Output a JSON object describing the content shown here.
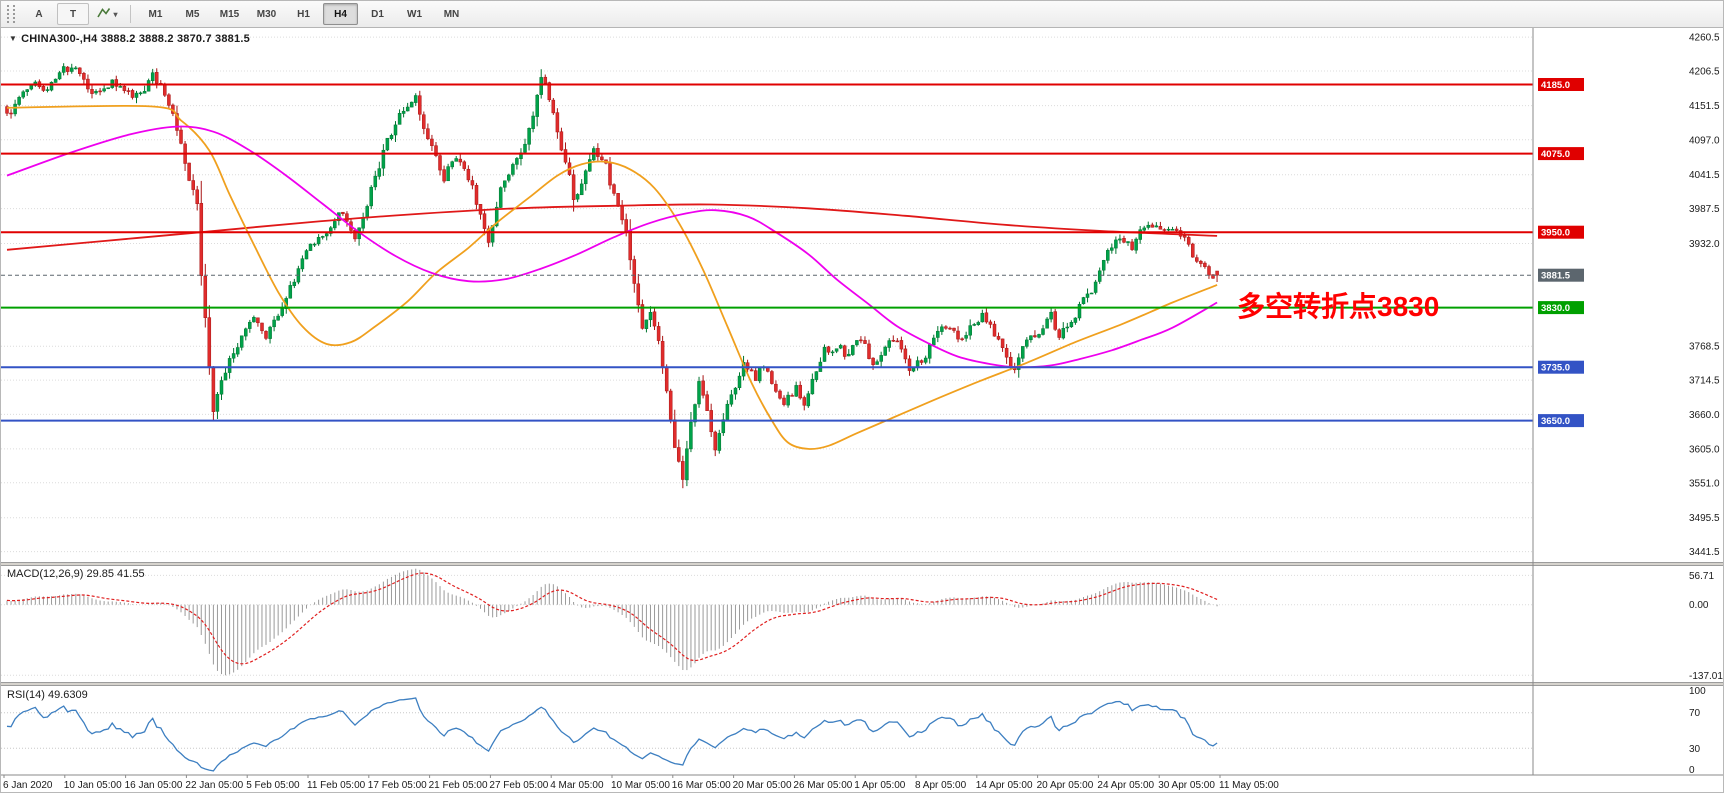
{
  "toolbar": {
    "tool_a": "A",
    "tool_t": "T",
    "timeframes": [
      "M1",
      "M5",
      "M15",
      "M30",
      "H1",
      "H4",
      "D1",
      "W1",
      "MN"
    ],
    "active_timeframe": "H4"
  },
  "chart": {
    "title": "CHINA300-,H4 3888.2 3888.2 3870.7 3881.5",
    "symbol": "CHINA300-",
    "period": "H4",
    "open": "3888.2",
    "high": "3888.2",
    "low": "3870.7",
    "close": "3881.5",
    "annotation": {
      "text": "多空转折点3830",
      "color": "#ff0000"
    }
  },
  "macd": {
    "title": "MACD(12,26,9) 29.85 41.55",
    "values": [
      "29.85",
      "41.55"
    ],
    "axis_labels": [
      {
        "text": "56.71",
        "value": 56.71
      },
      {
        "text": "0.00",
        "value": 0
      },
      {
        "text": "-137.01",
        "value": -137.01
      }
    ]
  },
  "rsi": {
    "title": "RSI(14) 49.6309",
    "value": "49.6309",
    "levels": [
      {
        "text": "100",
        "value": 100
      },
      {
        "text": "70",
        "value": 70
      },
      {
        "text": "30",
        "value": 30
      },
      {
        "text": "0",
        "value": 0
      }
    ]
  },
  "colors": {
    "bull": "#00a24a",
    "bull_border": "#00742f",
    "bear": "#e02c2c",
    "bear_border": "#a81414",
    "ma_red": "#e01818",
    "ma_orange": "#f0a01e",
    "ma_magenta": "#ee00ee",
    "grid": "#dcdcdc",
    "axis_text": "#1a1a1a",
    "border": "#8a8a8a",
    "hline_red": "#e00000",
    "hline_green": "#00a000",
    "hline_blue": "#3353c5",
    "current_badge": "#5c666e",
    "macd_hist": "#9a9a9a",
    "macd_signal": "#e02020",
    "rsi_line": "#3d7fc1"
  },
  "chart_data": {
    "type": "candlestick",
    "symbol": "CHINA300-",
    "timeframe": "H4",
    "title": "CHINA300-,H4",
    "last_bar": {
      "open": 3888.2,
      "high": 3888.2,
      "low": 3870.7,
      "close": 3881.5
    },
    "ylim": [
      3425,
      4275
    ],
    "bars_visible": 300,
    "price_axis_labels": [
      {
        "text": "4260.5",
        "value": 4260.5
      },
      {
        "text": "4206.5",
        "value": 4206.5
      },
      {
        "text": "4151.5",
        "value": 4151.5
      },
      {
        "text": "4097.0",
        "value": 4097.0
      },
      {
        "text": "4041.5",
        "value": 4041.5
      },
      {
        "text": "3987.5",
        "value": 3987.5
      },
      {
        "text": "3932.0",
        "value": 3932.0
      },
      {
        "text": "3768.5",
        "value": 3768.5
      },
      {
        "text": "3714.5",
        "value": 3714.5
      },
      {
        "text": "3660.0",
        "value": 3660.0
      },
      {
        "text": "3605.0",
        "value": 3605.0
      },
      {
        "text": "3551.0",
        "value": 3551.0
      },
      {
        "text": "3495.5",
        "value": 3495.5
      },
      {
        "text": "3441.5",
        "value": 3441.5
      }
    ],
    "time_labels": [
      "6 Jan 2020",
      "10 Jan 05:00",
      "16 Jan 05:00",
      "22 Jan 05:00",
      "5 Feb 05:00",
      "11 Feb 05:00",
      "17 Feb 05:00",
      "21 Feb 05:00",
      "27 Feb 05:00",
      "4 Mar 05:00",
      "10 Mar 05:00",
      "16 Mar 05:00",
      "20 Mar 05:00",
      "26 Mar 05:00",
      "1 Apr 05:00",
      "8 Apr 05:00",
      "14 Apr 05:00",
      "20 Apr 05:00",
      "24 Apr 05:00",
      "30 Apr 05:00",
      "11 May 05:00"
    ],
    "hlines": [
      {
        "value": 4185.0,
        "label": "4185.0",
        "color": "#e00000",
        "kind": "resistance"
      },
      {
        "value": 4075.0,
        "label": "4075.0",
        "color": "#e00000",
        "kind": "resistance"
      },
      {
        "value": 3950.0,
        "label": "3950.0",
        "color": "#e00000",
        "kind": "resistance"
      },
      {
        "value": 3881.5,
        "label": "3881.5",
        "color": "#5c666e",
        "kind": "current-price"
      },
      {
        "value": 3830.0,
        "label": "3830.0",
        "color": "#00a000",
        "kind": "pivot"
      },
      {
        "value": 3735.0,
        "label": "3735.0",
        "color": "#3353c5",
        "kind": "support"
      },
      {
        "value": 3650.0,
        "label": "3650.0",
        "color": "#3353c5",
        "kind": "support"
      }
    ],
    "price_path": [
      [
        -60,
        4080
      ],
      [
        -30,
        4118
      ],
      [
        0,
        4145
      ],
      [
        17,
        4215
      ],
      [
        21,
        4175
      ],
      [
        26,
        4190
      ],
      [
        31,
        4160
      ],
      [
        36,
        4198
      ],
      [
        41,
        4150
      ],
      [
        44,
        4070
      ],
      [
        47,
        3988
      ],
      [
        48,
        3880
      ],
      [
        50,
        3740
      ],
      [
        51,
        3672
      ],
      [
        53,
        3726
      ],
      [
        57,
        3775
      ],
      [
        61,
        3805
      ],
      [
        64,
        3782
      ],
      [
        69,
        3845
      ],
      [
        73,
        3900
      ],
      [
        78,
        3942
      ],
      [
        82,
        3982
      ],
      [
        86,
        3948
      ],
      [
        89,
        4002
      ],
      [
        93,
        4080
      ],
      [
        98,
        4145
      ],
      [
        101,
        4168
      ],
      [
        104,
        4098
      ],
      [
        108,
        4042
      ],
      [
        111,
        4078
      ],
      [
        115,
        4018
      ],
      [
        119,
        3938
      ],
      [
        122,
        4012
      ],
      [
        126,
        4068
      ],
      [
        130,
        4138
      ],
      [
        132,
        4196
      ],
      [
        135,
        4148
      ],
      [
        139,
        4038
      ],
      [
        140,
        3992
      ],
      [
        143,
        4058
      ],
      [
        145,
        4082
      ],
      [
        148,
        4052
      ],
      [
        150,
        4008
      ],
      [
        153,
        3948
      ],
      [
        155,
        3862
      ],
      [
        157,
        3782
      ],
      [
        159,
        3820
      ],
      [
        161,
        3778
      ],
      [
        163,
        3700
      ],
      [
        165,
        3618
      ],
      [
        167,
        3565
      ],
      [
        169,
        3642
      ],
      [
        171,
        3702
      ],
      [
        173,
        3660
      ],
      [
        175,
        3608
      ],
      [
        177,
        3662
      ],
      [
        180,
        3712
      ],
      [
        182,
        3742
      ],
      [
        185,
        3720
      ],
      [
        187,
        3742
      ],
      [
        190,
        3702
      ],
      [
        192,
        3672
      ],
      [
        195,
        3700
      ],
      [
        197,
        3682
      ],
      [
        200,
        3722
      ],
      [
        202,
        3758
      ],
      [
        205,
        3772
      ],
      [
        208,
        3752
      ],
      [
        211,
        3775
      ],
      [
        214,
        3742
      ],
      [
        218,
        3788
      ],
      [
        221,
        3768
      ],
      [
        223,
        3722
      ],
      [
        226,
        3748
      ],
      [
        229,
        3778
      ],
      [
        232,
        3800
      ],
      [
        235,
        3772
      ],
      [
        238,
        3802
      ],
      [
        241,
        3822
      ],
      [
        244,
        3788
      ],
      [
        247,
        3742
      ],
      [
        249,
        3722
      ],
      [
        251,
        3762
      ],
      [
        255,
        3792
      ],
      [
        258,
        3812
      ],
      [
        260,
        3782
      ],
      [
        263,
        3812
      ],
      [
        266,
        3846
      ],
      [
        269,
        3872
      ],
      [
        272,
        3912
      ],
      [
        275,
        3942
      ],
      [
        278,
        3922
      ],
      [
        281,
        3952
      ],
      [
        284,
        3964
      ],
      [
        286,
        3948
      ],
      [
        289,
        3958
      ],
      [
        291,
        3942
      ],
      [
        294,
        3902
      ],
      [
        296,
        3888
      ],
      [
        299,
        3881.5
      ]
    ],
    "moving_averages": [
      {
        "name": "ma-slow-red",
        "color_key": "ma_red",
        "points": [
          [
            0,
            3922
          ],
          [
            24,
            3936
          ],
          [
            48,
            3950
          ],
          [
            75,
            3966
          ],
          [
            99,
            3978
          ],
          [
            126,
            3988
          ],
          [
            150,
            3992
          ],
          [
            174,
            3994
          ],
          [
            198,
            3988
          ],
          [
            222,
            3976
          ],
          [
            246,
            3962
          ],
          [
            270,
            3952
          ],
          [
            299,
            3944
          ]
        ]
      },
      {
        "name": "ma-medium-orange",
        "color_key": "ma_orange",
        "points": [
          [
            0,
            4148
          ],
          [
            36,
            4150
          ],
          [
            43,
            4128
          ],
          [
            50,
            4080
          ],
          [
            55,
            4010
          ],
          [
            61,
            3930
          ],
          [
            67,
            3855
          ],
          [
            73,
            3800
          ],
          [
            79,
            3772
          ],
          [
            85,
            3775
          ],
          [
            91,
            3800
          ],
          [
            99,
            3840
          ],
          [
            106,
            3885
          ],
          [
            114,
            3925
          ],
          [
            121,
            3965
          ],
          [
            129,
            4005
          ],
          [
            136,
            4040
          ],
          [
            142,
            4058
          ],
          [
            148,
            4062
          ],
          [
            154,
            4050
          ],
          [
            160,
            4020
          ],
          [
            166,
            3965
          ],
          [
            172,
            3890
          ],
          [
            178,
            3800
          ],
          [
            184,
            3710
          ],
          [
            189,
            3650
          ],
          [
            193,
            3615
          ],
          [
            198,
            3605
          ],
          [
            203,
            3610
          ],
          [
            210,
            3630
          ],
          [
            219,
            3655
          ],
          [
            228,
            3680
          ],
          [
            240,
            3712
          ],
          [
            252,
            3742
          ],
          [
            264,
            3775
          ],
          [
            276,
            3805
          ],
          [
            288,
            3838
          ],
          [
            299,
            3866
          ]
        ]
      },
      {
        "name": "ma-fast-magenta",
        "color_key": "ma_magenta",
        "points": [
          [
            0,
            4040
          ],
          [
            15,
            4075
          ],
          [
            30,
            4105
          ],
          [
            42,
            4118
          ],
          [
            51,
            4110
          ],
          [
            60,
            4080
          ],
          [
            69,
            4040
          ],
          [
            78,
            3995
          ],
          [
            87,
            3950
          ],
          [
            96,
            3912
          ],
          [
            105,
            3885
          ],
          [
            114,
            3872
          ],
          [
            123,
            3875
          ],
          [
            132,
            3892
          ],
          [
            141,
            3915
          ],
          [
            150,
            3942
          ],
          [
            159,
            3965
          ],
          [
            168,
            3980
          ],
          [
            175,
            3985
          ],
          [
            183,
            3975
          ],
          [
            190,
            3950
          ],
          [
            198,
            3915
          ],
          [
            205,
            3875
          ],
          [
            213,
            3835
          ],
          [
            220,
            3800
          ],
          [
            228,
            3772
          ],
          [
            235,
            3752
          ],
          [
            243,
            3740
          ],
          [
            250,
            3735
          ],
          [
            258,
            3738
          ],
          [
            265,
            3748
          ],
          [
            273,
            3762
          ],
          [
            280,
            3778
          ],
          [
            288,
            3798
          ],
          [
            299,
            3838
          ]
        ]
      }
    ],
    "indicators": [
      {
        "name": "MACD",
        "params": [
          12,
          26,
          9
        ],
        "display_values": [
          29.85,
          41.55
        ],
        "range_labels": [
          56.71,
          0,
          -137.01
        ]
      },
      {
        "name": "RSI",
        "params": [
          14
        ],
        "value": 49.6309,
        "levels": [
          100,
          70,
          30,
          0
        ]
      }
    ]
  }
}
